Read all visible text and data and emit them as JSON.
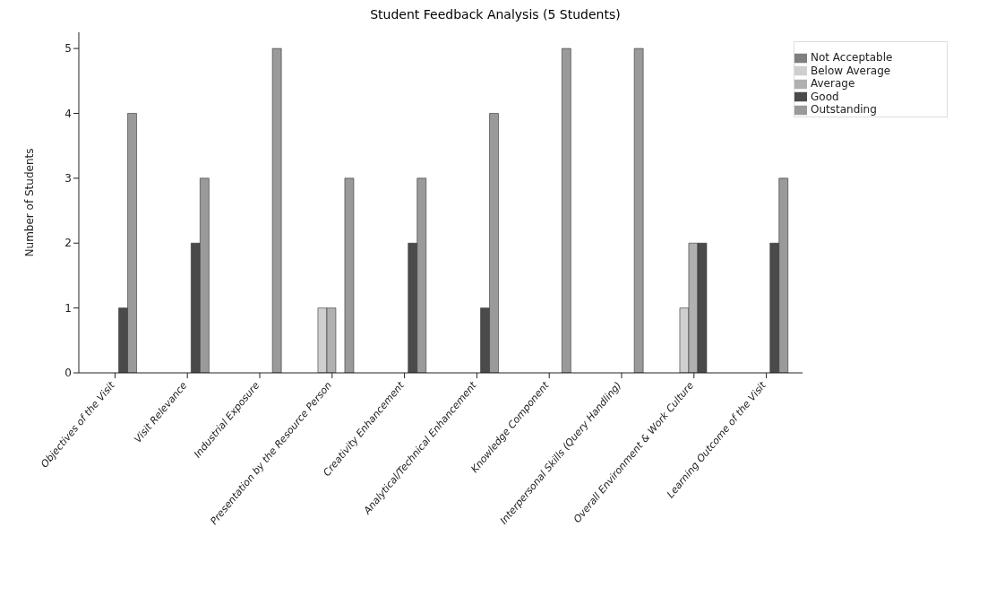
{
  "chart_data": {
    "type": "bar",
    "title": "Student Feedback Analysis (5 Students)",
    "ylabel": "Number of Students",
    "categories": [
      "Objectives of the Visit",
      "Visit Relevance",
      "Industrial Exposure",
      "Presentation by the Resource Person",
      "Creativity Enhancement",
      "Analytical/Technical Enhancement",
      "Knowledge Component",
      "Interpersonal Skills (Query Handling)",
      "Overall Environment & Work Culture",
      "Learning Outcome of the Visit"
    ],
    "series": [
      {
        "name": "Not Acceptable",
        "color": "#7f7f7f",
        "values": [
          0,
          0,
          0,
          0,
          0,
          0,
          0,
          0,
          0,
          0
        ]
      },
      {
        "name": "Below Average",
        "color": "#cfcfcf",
        "values": [
          0,
          0,
          0,
          1,
          0,
          0,
          0,
          0,
          1,
          0
        ]
      },
      {
        "name": "Average",
        "color": "#b0b0b0",
        "values": [
          0,
          0,
          0,
          1,
          0,
          0,
          0,
          0,
          2,
          0
        ]
      },
      {
        "name": "Good",
        "color": "#4a4a4a",
        "values": [
          1,
          2,
          0,
          0,
          2,
          1,
          0,
          0,
          2,
          2
        ]
      },
      {
        "name": "Outstanding",
        "color": "#9a9a9a",
        "values": [
          4,
          3,
          5,
          3,
          3,
          4,
          5,
          5,
          0,
          3
        ]
      }
    ],
    "ylim": [
      0,
      5.25
    ],
    "yticks": [
      0,
      1,
      2,
      3,
      4,
      5
    ],
    "legend": "top right"
  }
}
